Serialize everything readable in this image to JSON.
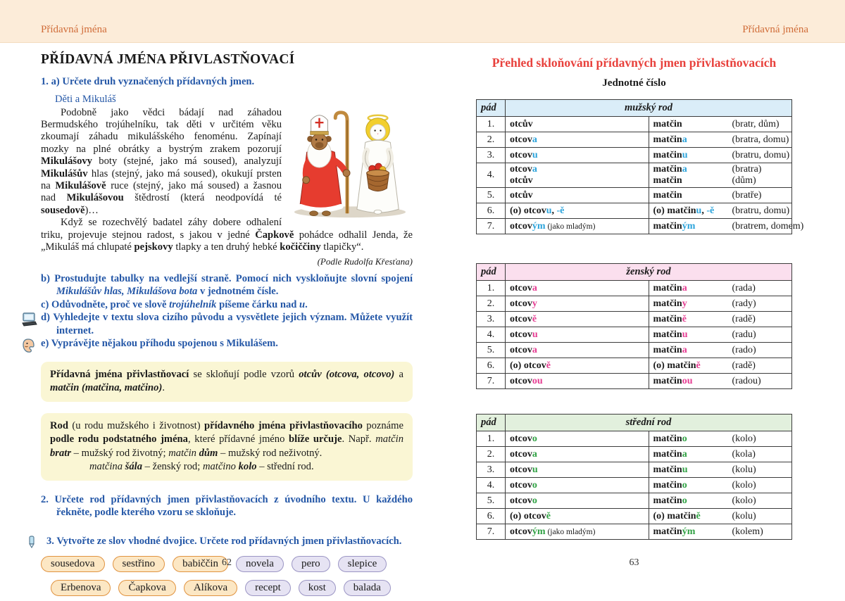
{
  "page_left": {
    "header": "Přídavná jména",
    "title": "PŘÍDAVNÁ JMÉNA PŘIVLASTŇOVACÍ",
    "task1": [
      [
        "1. a) Určete druh vyznačených přídavných jmen.",
        "b"
      ]
    ],
    "story_title": "Děti a Mikuláš",
    "para1": [
      [
        "Podobně jako vědci bádají nad záhadou Bermudského trojúhelníku, tak děti v určitém věku zkoumají záhadu mikulášského fenoménu. Zapínají mozky na plné obrátky a bystrým zrakem pozorují ",
        ""
      ],
      [
        "Mikulášovy",
        "b"
      ],
      [
        " boty (stejné, jako má soused), analyzují ",
        ""
      ],
      [
        "Mikulášův",
        "b"
      ],
      [
        " hlas (stejný, jako má soused), okukují prsten na ",
        ""
      ],
      [
        "Mikulášově",
        "b"
      ],
      [
        " ruce (stejný, jako má soused) a žasnou nad ",
        ""
      ],
      [
        "Mikulášovou",
        "b"
      ],
      [
        " štědrostí (která neodpovídá té ",
        ""
      ],
      [
        "sousedově",
        "b"
      ],
      [
        ")…",
        ""
      ]
    ],
    "para2": [
      [
        "Když se rozechvělý badatel záhy dobere odhalení triku, projevuje stejnou radost, s jakou v jedné ",
        ""
      ],
      [
        "Čapkově",
        "b"
      ],
      [
        " pohádce odhalil Jenda, že „Mikuláš má chlupaté ",
        ""
      ],
      [
        "pejskovy",
        "b"
      ],
      [
        " tlapky a ten druhý hebké ",
        ""
      ],
      [
        "kočiččiny",
        "b"
      ],
      [
        " tlapičky“.",
        ""
      ]
    ],
    "attribution": "(Podle Rudolfa Křesťana)",
    "task_b": [
      [
        "b) Prostudujte tabulky na vedlejší straně. Pomocí nich vyskloňujte slovní spojení ",
        "b"
      ],
      [
        "Mikulášův hlas, Mikulášova bota",
        "bi"
      ],
      [
        " v jednotném čísle.",
        "b"
      ]
    ],
    "task_c": [
      [
        "c) Odůvodněte, proč ve slově ",
        "b"
      ],
      [
        "trojúhelník",
        "bi"
      ],
      [
        " píšeme čárku nad ",
        "b"
      ],
      [
        "u",
        "bi"
      ],
      [
        ".",
        "b"
      ]
    ],
    "task_d": [
      [
        "d) Vyhledejte v textu slova cizího původu a vysvětlete jejich význam. Můžete využít internet.",
        "b"
      ]
    ],
    "task_e": [
      [
        "e) Vyprávějte nějakou příhodu spojenou s Mikulášem.",
        "b"
      ]
    ],
    "box1": [
      [
        "Přídavná jména přivlastňovací",
        "b"
      ],
      [
        " se skloňují podle vzorů ",
        ""
      ],
      [
        "otcův (otcova, otcovo)",
        "bi"
      ],
      [
        " a ",
        ""
      ],
      [
        "matčin (matčina, matčino)",
        "bi"
      ],
      [
        ".",
        ""
      ]
    ],
    "box2_line1": [
      [
        "Rod",
        "b"
      ],
      [
        " (u rodu mužského i životnost) ",
        ""
      ],
      [
        "přídavného jména přivlastňovacího",
        "b"
      ],
      [
        " poznáme ",
        ""
      ],
      [
        "podle rodu podstatného jména",
        "b"
      ],
      [
        ", které přídavné jméno ",
        ""
      ],
      [
        "blíže určuje",
        "b"
      ],
      [
        ". Např. ",
        ""
      ],
      [
        "matčin ",
        "i"
      ],
      [
        "bratr",
        "bi"
      ],
      [
        " – mužský rod životný; ",
        ""
      ],
      [
        "matčin ",
        "i"
      ],
      [
        "dům",
        "bi"
      ],
      [
        " – mužský rod neživotný.",
        ""
      ]
    ],
    "box2_line2": [
      [
        "matčina ",
        "i"
      ],
      [
        "šála",
        "bi"
      ],
      [
        " – ženský rod; ",
        ""
      ],
      [
        "matčino ",
        "i"
      ],
      [
        "kolo",
        "bi"
      ],
      [
        " – střední rod.",
        ""
      ]
    ],
    "task2": [
      [
        "2. Určete rod přídavných jmen přivlastňovacích z úvodního textu. U každého řekněte, podle kterého vzoru se skloňuje.",
        "b"
      ]
    ],
    "task3": [
      [
        "3. Vytvořte ze slov vhodné dvojice. Určete rod přídavných jmen přivlastňovacích.",
        "b"
      ]
    ],
    "chips": [
      [
        {
          "label": "sousedova",
          "color": "orange"
        },
        {
          "label": "sestřino",
          "color": "orange"
        },
        {
          "label": "babiččin",
          "color": "orange"
        },
        {
          "label": "novela",
          "color": "purple"
        },
        {
          "label": "pero",
          "color": "purple"
        },
        {
          "label": "slepice",
          "color": "purple"
        }
      ],
      [
        {
          "label": "Erbenova",
          "color": "orange"
        },
        {
          "label": "Čapkova",
          "color": "orange"
        },
        {
          "label": "Alíkova",
          "color": "orange"
        },
        {
          "label": "recept",
          "color": "purple"
        },
        {
          "label": "kost",
          "color": "purple"
        },
        {
          "label": "balada",
          "color": "purple"
        }
      ]
    ],
    "page_number": "62"
  },
  "page_right": {
    "header": "Přídavná jména",
    "title": "Přehled skloňování přídavných jmen přivlastňovacích",
    "subtitle": "Jednotné číslo",
    "tables": [
      {
        "header_col": "pád",
        "header_title": "mužský rod",
        "theme": "blue",
        "rows": [
          {
            "n": "1.",
            "lines": [
              {
                "a": [
                  [
                    "otcův",
                    0
                  ]
                ],
                "b": [
                  [
                    "matčin",
                    0
                  ]
                ],
                "ex": "(bratr, dům)"
              }
            ]
          },
          {
            "n": "2.",
            "lines": [
              {
                "a": [
                  [
                    "otcov",
                    0
                  ],
                  [
                    "a",
                    1
                  ]
                ],
                "b": [
                  [
                    "matčin",
                    0
                  ],
                  [
                    "a",
                    1
                  ]
                ],
                "ex": "(bratra, domu)"
              }
            ]
          },
          {
            "n": "3.",
            "lines": [
              {
                "a": [
                  [
                    "otcov",
                    0
                  ],
                  [
                    "u",
                    1
                  ]
                ],
                "b": [
                  [
                    "matčin",
                    0
                  ],
                  [
                    "u",
                    1
                  ]
                ],
                "ex": "(bratru, domu)"
              }
            ]
          },
          {
            "n": "4.",
            "lines": [
              {
                "a": [
                  [
                    "otcov",
                    0
                  ],
                  [
                    "a",
                    1
                  ]
                ],
                "b": [
                  [
                    "matčin",
                    0
                  ],
                  [
                    "a",
                    1
                  ]
                ],
                "ex": "(bratra)"
              },
              {
                "a": [
                  [
                    "otcův",
                    0
                  ]
                ],
                "b": [
                  [
                    "matčin",
                    0
                  ]
                ],
                "ex": "(dům)"
              }
            ]
          },
          {
            "n": "5.",
            "lines": [
              {
                "a": [
                  [
                    "otcův",
                    0
                  ]
                ],
                "b": [
                  [
                    "matčin",
                    0
                  ]
                ],
                "ex": "(bratře)"
              }
            ]
          },
          {
            "n": "6.",
            "lines": [
              {
                "a": [
                  [
                    "(o) otcov",
                    0
                  ],
                  [
                    "u",
                    1
                  ],
                  [
                    ", ",
                    0
                  ],
                  [
                    "-ě",
                    1
                  ]
                ],
                "b": [
                  [
                    "(o) matčin",
                    0
                  ],
                  [
                    "u",
                    1
                  ],
                  [
                    ", ",
                    0
                  ],
                  [
                    "-ě",
                    1
                  ]
                ],
                "ex": "(bratru, domu)"
              }
            ]
          },
          {
            "n": "7.",
            "lines": [
              {
                "a": [
                  [
                    "otcov",
                    0
                  ],
                  [
                    "ým",
                    1
                  ],
                  [
                    " (jako mladým)",
                    2
                  ]
                ],
                "b": [
                  [
                    "matčin",
                    0
                  ],
                  [
                    "ým",
                    1
                  ]
                ],
                "ex": "(bratrem, domem)"
              }
            ]
          }
        ]
      },
      {
        "header_col": "pád",
        "header_title": "ženský rod",
        "theme": "pink",
        "rows": [
          {
            "n": "1.",
            "lines": [
              {
                "a": [
                  [
                    "otcov",
                    0
                  ],
                  [
                    "a",
                    1
                  ]
                ],
                "b": [
                  [
                    "matčin",
                    0
                  ],
                  [
                    "a",
                    1
                  ]
                ],
                "ex": "(rada)"
              }
            ]
          },
          {
            "n": "2.",
            "lines": [
              {
                "a": [
                  [
                    "otcov",
                    0
                  ],
                  [
                    "y",
                    1
                  ]
                ],
                "b": [
                  [
                    "matčin",
                    0
                  ],
                  [
                    "y",
                    1
                  ]
                ],
                "ex": "(rady)"
              }
            ]
          },
          {
            "n": "3.",
            "lines": [
              {
                "a": [
                  [
                    "otcov",
                    0
                  ],
                  [
                    "ě",
                    1
                  ]
                ],
                "b": [
                  [
                    "matčin",
                    0
                  ],
                  [
                    "ě",
                    1
                  ]
                ],
                "ex": "(radě)"
              }
            ]
          },
          {
            "n": "4.",
            "lines": [
              {
                "a": [
                  [
                    "otcov",
                    0
                  ],
                  [
                    "u",
                    1
                  ]
                ],
                "b": [
                  [
                    "matčin",
                    0
                  ],
                  [
                    "u",
                    1
                  ]
                ],
                "ex": "(radu)"
              }
            ]
          },
          {
            "n": "5.",
            "lines": [
              {
                "a": [
                  [
                    "otcov",
                    0
                  ],
                  [
                    "a",
                    1
                  ]
                ],
                "b": [
                  [
                    "matčin",
                    0
                  ],
                  [
                    "a",
                    1
                  ]
                ],
                "ex": "(rado)"
              }
            ]
          },
          {
            "n": "6.",
            "lines": [
              {
                "a": [
                  [
                    "(o) otcov",
                    0
                  ],
                  [
                    "ě",
                    1
                  ]
                ],
                "b": [
                  [
                    "(o) matčin",
                    0
                  ],
                  [
                    "ě",
                    1
                  ]
                ],
                "ex": "(radě)"
              }
            ]
          },
          {
            "n": "7.",
            "lines": [
              {
                "a": [
                  [
                    "otcov",
                    0
                  ],
                  [
                    "ou",
                    1
                  ]
                ],
                "b": [
                  [
                    "matčin",
                    0
                  ],
                  [
                    "ou",
                    1
                  ]
                ],
                "ex": "(radou)"
              }
            ]
          }
        ]
      },
      {
        "header_col": "pád",
        "header_title": "střední rod",
        "theme": "green",
        "rows": [
          {
            "n": "1.",
            "lines": [
              {
                "a": [
                  [
                    "otcov",
                    0
                  ],
                  [
                    "o",
                    1
                  ]
                ],
                "b": [
                  [
                    "matčin",
                    0
                  ],
                  [
                    "o",
                    1
                  ]
                ],
                "ex": "(kolo)"
              }
            ]
          },
          {
            "n": "2.",
            "lines": [
              {
                "a": [
                  [
                    "otcov",
                    0
                  ],
                  [
                    "a",
                    1
                  ]
                ],
                "b": [
                  [
                    "matčin",
                    0
                  ],
                  [
                    "a",
                    1
                  ]
                ],
                "ex": "(kola)"
              }
            ]
          },
          {
            "n": "3.",
            "lines": [
              {
                "a": [
                  [
                    "otcov",
                    0
                  ],
                  [
                    "u",
                    1
                  ]
                ],
                "b": [
                  [
                    "matčin",
                    0
                  ],
                  [
                    "u",
                    1
                  ]
                ],
                "ex": "(kolu)"
              }
            ]
          },
          {
            "n": "4.",
            "lines": [
              {
                "a": [
                  [
                    "otcov",
                    0
                  ],
                  [
                    "o",
                    1
                  ]
                ],
                "b": [
                  [
                    "matčin",
                    0
                  ],
                  [
                    "o",
                    1
                  ]
                ],
                "ex": "(kolo)"
              }
            ]
          },
          {
            "n": "5.",
            "lines": [
              {
                "a": [
                  [
                    "otcov",
                    0
                  ],
                  [
                    "o",
                    1
                  ]
                ],
                "b": [
                  [
                    "matčin",
                    0
                  ],
                  [
                    "o",
                    1
                  ]
                ],
                "ex": "(kolo)"
              }
            ]
          },
          {
            "n": "6.",
            "lines": [
              {
                "a": [
                  [
                    "(o) otcov",
                    0
                  ],
                  [
                    "ě",
                    1
                  ]
                ],
                "b": [
                  [
                    "(o) matčin",
                    0
                  ],
                  [
                    "ě",
                    1
                  ]
                ],
                "ex": "(kolu)"
              }
            ]
          },
          {
            "n": "7.",
            "lines": [
              {
                "a": [
                  [
                    "otcov",
                    0
                  ],
                  [
                    "ým",
                    1
                  ],
                  [
                    " (jako mladým)",
                    2
                  ]
                ],
                "b": [
                  [
                    "matčin",
                    0
                  ],
                  [
                    "ým",
                    1
                  ]
                ],
                "ex": "(kolem)"
              }
            ]
          }
        ]
      }
    ],
    "page_number": "63"
  },
  "colors": {
    "topbar_bg": "#fcecd9",
    "header_text": "#d06c38",
    "task_blue": "#2457a7",
    "title_red": "#e8413c",
    "ending_blue": "#2ba3db",
    "ending_pink": "#e53c92",
    "ending_green": "#2fa143",
    "box_yellow": "#faf6d4",
    "chip_orange_border": "#e09340",
    "chip_purple_border": "#9b95c4"
  }
}
